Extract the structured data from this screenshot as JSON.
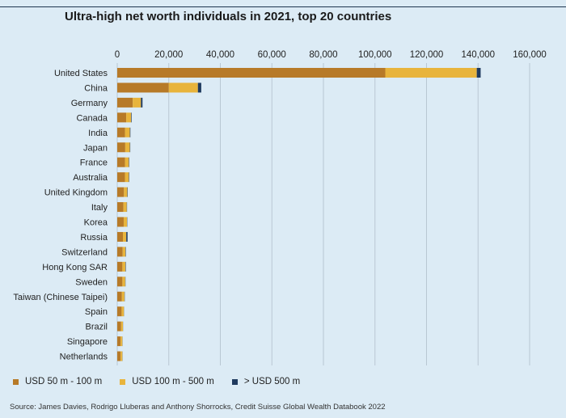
{
  "chart_data": {
    "type": "bar",
    "orientation": "horizontal",
    "stacked": true,
    "title": "Ultra-high net worth individuals in 2021, top 20 countries",
    "categories": [
      "United States",
      "China",
      "Germany",
      "Canada",
      "India",
      "Japan",
      "France",
      "Australia",
      "United Kingdom",
      "Italy",
      "Korea",
      "Russia",
      "Switzerland",
      "Hong Kong SAR",
      "Sweden",
      "Taiwan (Chinese Taipei)",
      "Spain",
      "Brazil",
      "Singapore",
      "Netherlands"
    ],
    "series": [
      {
        "name": "USD 50 m - 100 m",
        "color": "#b77a28",
        "values": [
          104000,
          20000,
          6000,
          3500,
          3000,
          3100,
          3000,
          3000,
          2600,
          2400,
          2500,
          2200,
          2100,
          2000,
          2000,
          1800,
          1700,
          1500,
          1300,
          1300
        ]
      },
      {
        "name": "USD 100 m - 500 m",
        "color": "#e8b43c",
        "values": [
          35500,
          11300,
          3200,
          1900,
          1900,
          1800,
          1500,
          1500,
          1300,
          1300,
          1300,
          1300,
          1100,
          1200,
          1100,
          1000,
          900,
          700,
          700,
          700
        ]
      },
      {
        "name": "> USD 500 m",
        "color": "#1f3a5f",
        "values": [
          1500,
          1300,
          600,
          200,
          200,
          150,
          150,
          150,
          150,
          100,
          100,
          500,
          150,
          150,
          100,
          100,
          50,
          50,
          50,
          50
        ]
      }
    ],
    "xlim": [
      0,
      160000
    ],
    "xticks": [
      "0",
      "20,000",
      "40,000",
      "60,000",
      "80,000",
      "100,000",
      "120,000",
      "140,000",
      "160,000"
    ],
    "xtick_values": [
      0,
      20000,
      40000,
      60000,
      80000,
      100000,
      120000,
      140000,
      160000
    ],
    "grid": true,
    "legend_position": "bottom-left"
  },
  "source": "Source: James Davies, Rodrigo Lluberas and Anthony Shorrocks, Credit Suisse Global Wealth Databook 2022"
}
